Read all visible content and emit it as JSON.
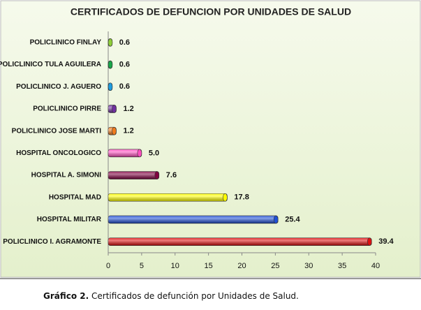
{
  "chart_data": {
    "type": "bar",
    "orientation": "horizontal",
    "title": "CERTIFICADOS DE DEFUNCION POR UNIDADES DE SALUD",
    "categories": [
      "POLICLINICO FINLAY",
      "POLICLINICO TULA AGUILERA",
      "POLICLINICO J. AGUERO",
      "POLICLINICO PIRRE",
      "POLICLINICO JOSE MARTI",
      "HOSPITAL ONCOLOGICO",
      "HOSPITAL A. SIMONI",
      "HOSPITAL MAD",
      "HOSPITAL MILITAR",
      "POLICLINICO I. AGRAMONTE"
    ],
    "values": [
      0.6,
      0.6,
      0.6,
      1.2,
      1.2,
      5.0,
      7.6,
      17.8,
      25.4,
      39.4
    ],
    "value_labels": [
      "0.6",
      "0.6",
      "0.6",
      "1.2",
      "1.2",
      "5.0",
      "7.6",
      "17.8",
      "25.4",
      "39.4"
    ],
    "colors": [
      "#8fce3a",
      "#1aa64a",
      "#1e9de0",
      "#7030a0",
      "#f07c1e",
      "#ff4fc0",
      "#800040",
      "#ffff00",
      "#1f4fd6",
      "#e01010"
    ],
    "xlim": [
      0,
      40
    ],
    "xticks": [
      0,
      5,
      10,
      15,
      20,
      25,
      30,
      35,
      40
    ],
    "grid": false
  },
  "caption": {
    "label": "Gráfico 2.",
    "text": "Certificados de defunción por Unidades de Salud."
  }
}
